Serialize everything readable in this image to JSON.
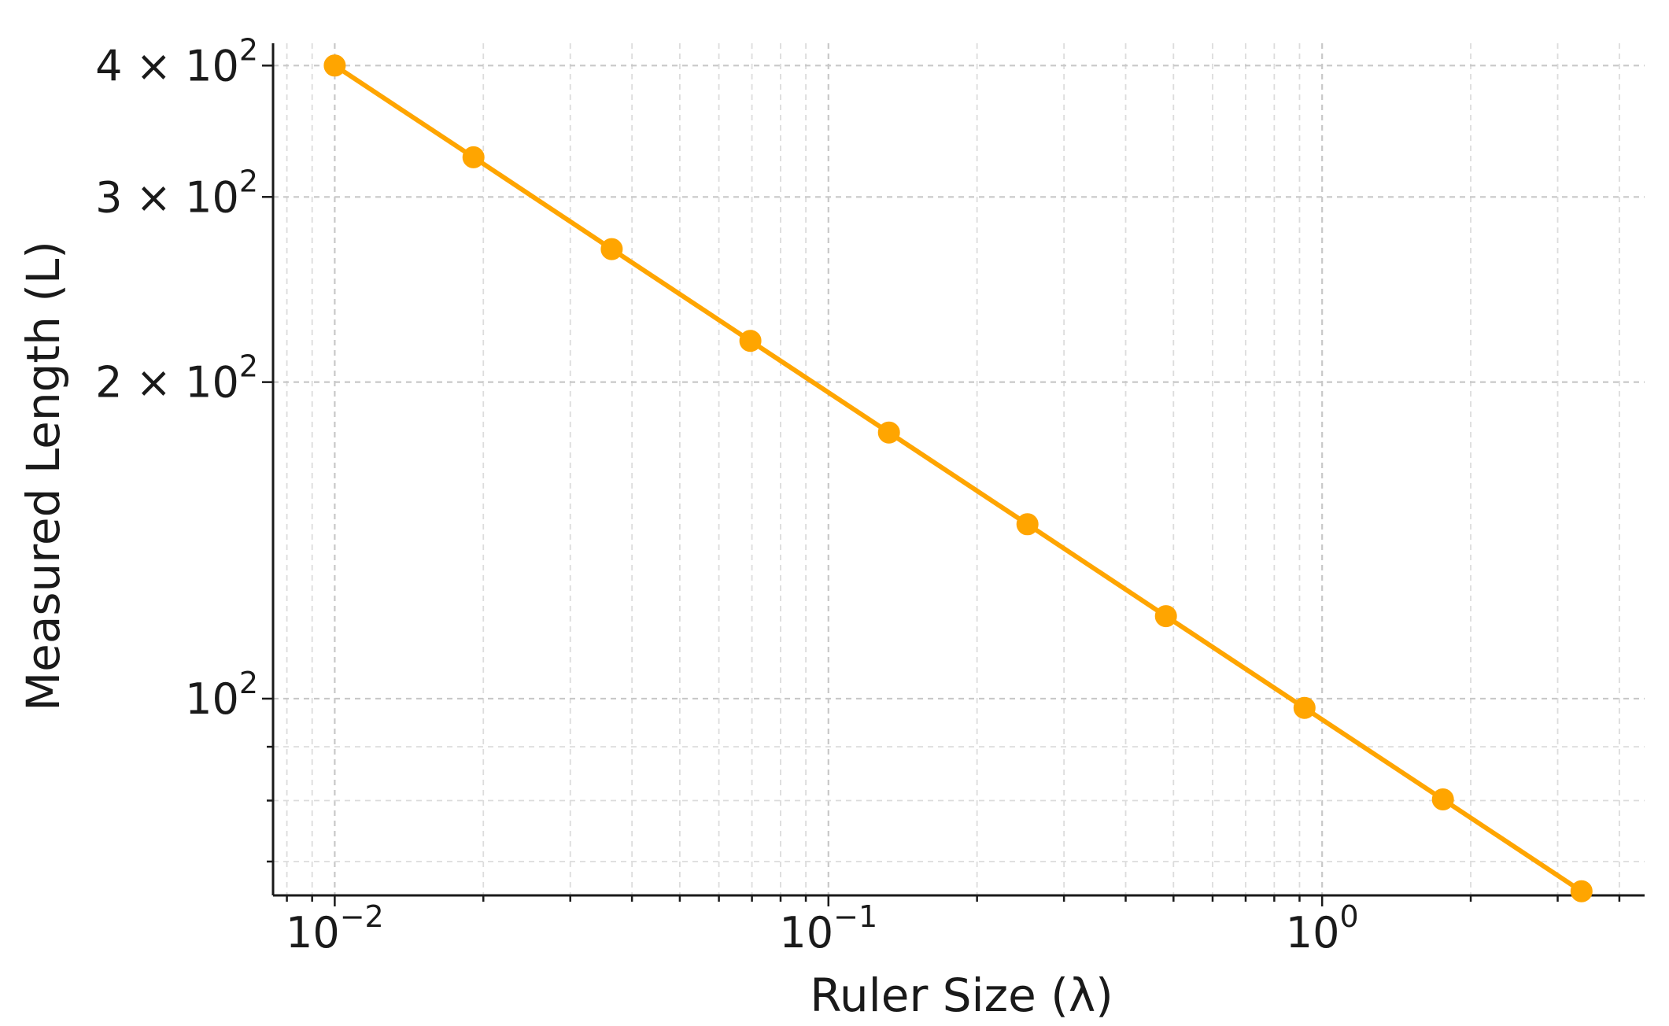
{
  "chart_data": {
    "type": "line",
    "title": "",
    "xlabel": "Ruler Size (λ)",
    "ylabel": "Measured Length (L)",
    "x_scale": "log",
    "y_scale": "log",
    "xlim": [
      0.0075,
      4.5
    ],
    "ylim": [
      65,
      420
    ],
    "grid": true,
    "grid_style": "dashed",
    "line_color": "#FFA500",
    "marker": "circle",
    "x_ticks": [
      {
        "value": 0.01,
        "base": "10",
        "exp": "−2"
      },
      {
        "value": 0.1,
        "base": "10",
        "exp": "−1"
      },
      {
        "value": 1,
        "base": "10",
        "exp": "0"
      }
    ],
    "y_ticks": [
      {
        "value": 100,
        "mant": "",
        "base": "10",
        "exp": "2"
      },
      {
        "value": 200,
        "mant": "2 × ",
        "base": "10",
        "exp": "2"
      },
      {
        "value": 300,
        "mant": "3 × ",
        "base": "10",
        "exp": "2"
      },
      {
        "value": 400,
        "mant": "4 × ",
        "base": "10",
        "exp": "2"
      }
    ],
    "series": [
      {
        "x": [
          0.01,
          0.0191,
          0.0364,
          0.0695,
          0.1326,
          0.253,
          0.4827,
          0.921,
          1.757,
          3.353
        ],
        "y": [
          400,
          327.2,
          267.6,
          218.9,
          179.1,
          146.5,
          119.8,
          98.0,
          80.2,
          65.6
        ]
      }
    ]
  }
}
